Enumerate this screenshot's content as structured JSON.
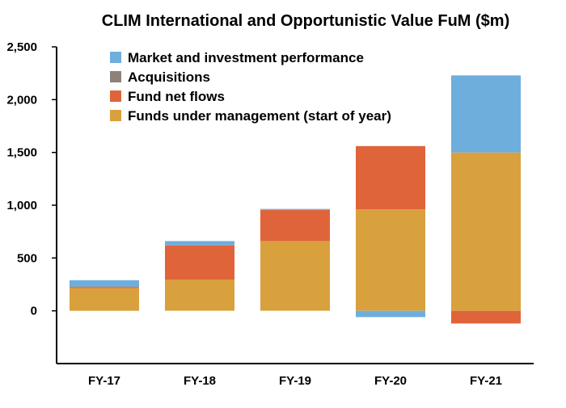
{
  "chart_data": {
    "type": "bar",
    "title": "CLIM International and Opportunistic Value FuM ($m)",
    "xlabel": "",
    "ylabel": "",
    "categories": [
      "FY-17",
      "FY-18",
      "FY-19",
      "FY-20",
      "FY-21"
    ],
    "ylim": [
      -500,
      2500
    ],
    "y_ticks": [
      0,
      500,
      1000,
      1500,
      2000,
      2500
    ],
    "y_tick_labels": [
      "0",
      "500",
      "1,000",
      "1,500",
      "2,000",
      "2,500"
    ],
    "stacked": true,
    "grid": false,
    "legend_position": "top-left",
    "series": [
      {
        "name": "Funds under management (start of year)",
        "color": "#D9A03E",
        "values": [
          215,
          295,
          660,
          960,
          1500
        ]
      },
      {
        "name": "Fund net flows",
        "color": "#E0643A",
        "values": [
          10,
          325,
          295,
          600,
          -120
        ]
      },
      {
        "name": "Acquisitions",
        "color": "#8C8279",
        "values": [
          5,
          0,
          0,
          0,
          0
        ]
      },
      {
        "name": "Market and investment performance",
        "color": "#6EAEDD",
        "values": [
          60,
          40,
          10,
          -60,
          730
        ]
      }
    ],
    "legend_order": [
      "Market and investment performance",
      "Acquisitions",
      "Fund net flows",
      "Funds under management (start of year)"
    ]
  }
}
